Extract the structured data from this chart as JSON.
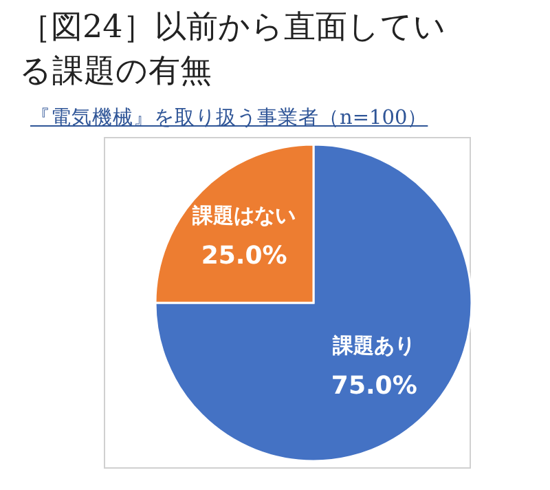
{
  "chart_data": {
    "type": "pie",
    "title": "［図24］以前から直面している課題の有無",
    "subtitle": "『電気機械』を取り扱う事業者（n=100）",
    "categories": [
      "課題あり",
      "課題はない"
    ],
    "values": [
      75,
      25
    ],
    "colors": [
      "#4472c4",
      "#ed7d31"
    ],
    "value_labels": [
      "75.0%",
      "25.0%"
    ]
  }
}
